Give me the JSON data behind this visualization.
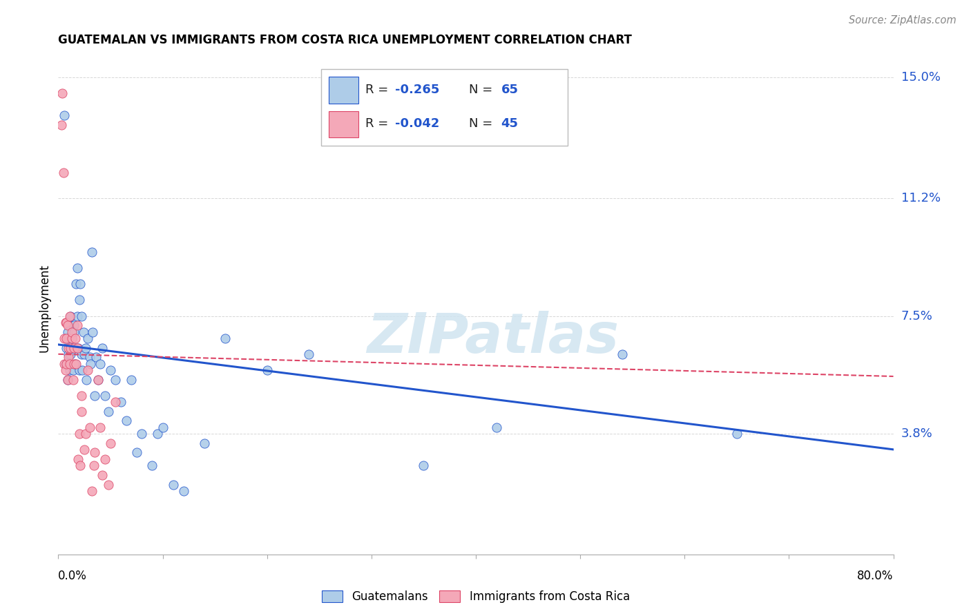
{
  "title": "GUATEMALAN VS IMMIGRANTS FROM COSTA RICA UNEMPLOYMENT CORRELATION CHART",
  "source": "Source: ZipAtlas.com",
  "ylabel": "Unemployment",
  "legend_blue_r": "R = -0.265",
  "legend_blue_n": "N = 65",
  "legend_pink_r": "R = -0.042",
  "legend_pink_n": "N = 45",
  "blue_color": "#AECCE8",
  "pink_color": "#F4A8B8",
  "trend_blue_color": "#2255CC",
  "trend_pink_color": "#DD4466",
  "watermark_color": "#D0E4F0",
  "watermark_text": "ZIPatlas",
  "ytick_vals": [
    0.0,
    0.038,
    0.075,
    0.112,
    0.15
  ],
  "ytick_labels": [
    "",
    "3.8%",
    "7.5%",
    "11.2%",
    "15.0%"
  ],
  "xmin": 0.0,
  "xmax": 0.8,
  "ymin": 0.0,
  "ymax": 0.155,
  "blue_trend_start_y": 0.066,
  "blue_trend_end_y": 0.033,
  "pink_trend_start_y": 0.063,
  "pink_trend_end_y": 0.056,
  "blue_scatter_x": [
    0.006,
    0.007,
    0.008,
    0.008,
    0.009,
    0.009,
    0.01,
    0.01,
    0.011,
    0.011,
    0.012,
    0.012,
    0.013,
    0.013,
    0.014,
    0.015,
    0.015,
    0.016,
    0.016,
    0.017,
    0.018,
    0.018,
    0.019,
    0.02,
    0.02,
    0.021,
    0.022,
    0.022,
    0.023,
    0.024,
    0.025,
    0.026,
    0.027,
    0.028,
    0.03,
    0.031,
    0.032,
    0.033,
    0.035,
    0.036,
    0.038,
    0.04,
    0.042,
    0.045,
    0.048,
    0.05,
    0.055,
    0.06,
    0.065,
    0.07,
    0.075,
    0.08,
    0.09,
    0.095,
    0.1,
    0.11,
    0.12,
    0.14,
    0.16,
    0.2,
    0.24,
    0.35,
    0.42,
    0.54,
    0.65
  ],
  "blue_scatter_y": [
    0.138,
    0.06,
    0.06,
    0.065,
    0.07,
    0.055,
    0.063,
    0.068,
    0.058,
    0.072,
    0.063,
    0.075,
    0.068,
    0.065,
    0.058,
    0.072,
    0.07,
    0.065,
    0.06,
    0.085,
    0.09,
    0.075,
    0.065,
    0.058,
    0.08,
    0.085,
    0.075,
    0.063,
    0.058,
    0.07,
    0.063,
    0.065,
    0.055,
    0.068,
    0.062,
    0.06,
    0.095,
    0.07,
    0.05,
    0.062,
    0.055,
    0.06,
    0.065,
    0.05,
    0.045,
    0.058,
    0.055,
    0.048,
    0.042,
    0.055,
    0.032,
    0.038,
    0.028,
    0.038,
    0.04,
    0.022,
    0.02,
    0.035,
    0.068,
    0.058,
    0.063,
    0.028,
    0.04,
    0.063,
    0.038
  ],
  "pink_scatter_x": [
    0.003,
    0.004,
    0.005,
    0.006,
    0.006,
    0.007,
    0.007,
    0.008,
    0.008,
    0.008,
    0.009,
    0.009,
    0.01,
    0.01,
    0.011,
    0.011,
    0.012,
    0.013,
    0.013,
    0.014,
    0.015,
    0.015,
    0.016,
    0.017,
    0.018,
    0.018,
    0.019,
    0.02,
    0.021,
    0.022,
    0.022,
    0.025,
    0.026,
    0.028,
    0.03,
    0.032,
    0.034,
    0.035,
    0.038,
    0.04,
    0.042,
    0.045,
    0.048,
    0.05,
    0.055
  ],
  "pink_scatter_y": [
    0.135,
    0.145,
    0.12,
    0.06,
    0.068,
    0.058,
    0.073,
    0.06,
    0.068,
    0.073,
    0.055,
    0.072,
    0.062,
    0.065,
    0.06,
    0.075,
    0.065,
    0.068,
    0.07,
    0.055,
    0.06,
    0.065,
    0.068,
    0.06,
    0.072,
    0.065,
    0.03,
    0.038,
    0.028,
    0.045,
    0.05,
    0.033,
    0.038,
    0.058,
    0.04,
    0.02,
    0.028,
    0.032,
    0.055,
    0.04,
    0.025,
    0.03,
    0.022,
    0.035,
    0.048
  ]
}
